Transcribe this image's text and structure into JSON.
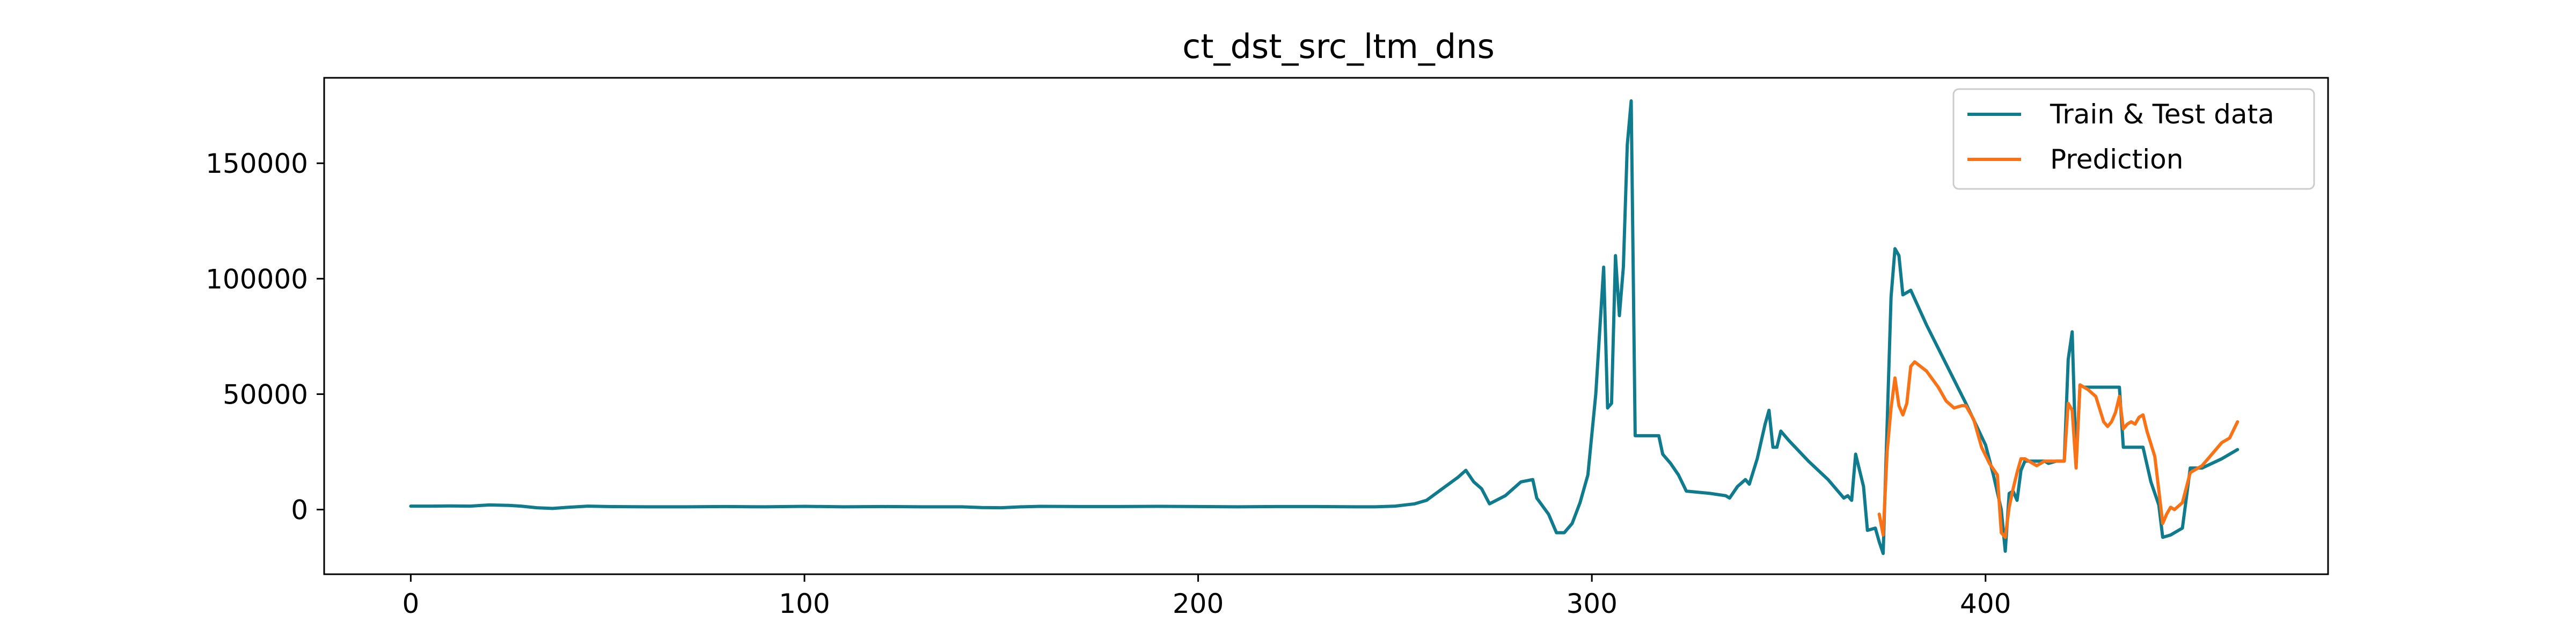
{
  "chart_data": {
    "type": "line",
    "title": "ct_dst_src_ltm_dns",
    "xlabel": "",
    "ylabel": "",
    "xlim": [
      -22,
      487
    ],
    "ylim": [
      -28000,
      187000
    ],
    "xticks": [
      0,
      100,
      200,
      300,
      400
    ],
    "yticks": [
      0,
      50000,
      100000,
      150000
    ],
    "grid": false,
    "legend_position": "top-right",
    "colors": {
      "train_test": "#0f7b8d",
      "prediction": "#f97316",
      "axes": "#000000"
    },
    "series": [
      {
        "name": "Train & Test data",
        "color": "#0f7b8d",
        "points": [
          [
            0,
            1500
          ],
          [
            5,
            1500
          ],
          [
            10,
            1600
          ],
          [
            15,
            1500
          ],
          [
            20,
            2000
          ],
          [
            25,
            1800
          ],
          [
            28,
            1500
          ],
          [
            32,
            800
          ],
          [
            36,
            500
          ],
          [
            40,
            1000
          ],
          [
            45,
            1500
          ],
          [
            50,
            1300
          ],
          [
            60,
            1200
          ],
          [
            70,
            1200
          ],
          [
            80,
            1300
          ],
          [
            90,
            1200
          ],
          [
            100,
            1400
          ],
          [
            110,
            1200
          ],
          [
            120,
            1300
          ],
          [
            130,
            1200
          ],
          [
            140,
            1200
          ],
          [
            145,
            900
          ],
          [
            150,
            800
          ],
          [
            155,
            1200
          ],
          [
            160,
            1400
          ],
          [
            170,
            1300
          ],
          [
            180,
            1300
          ],
          [
            190,
            1400
          ],
          [
            200,
            1300
          ],
          [
            210,
            1200
          ],
          [
            220,
            1300
          ],
          [
            230,
            1300
          ],
          [
            240,
            1200
          ],
          [
            245,
            1200
          ],
          [
            250,
            1500
          ],
          [
            255,
            2500
          ],
          [
            258,
            4000
          ],
          [
            262,
            9000
          ],
          [
            266,
            14000
          ],
          [
            268,
            17000
          ],
          [
            270,
            12000
          ],
          [
            272,
            9000
          ],
          [
            274,
            2500
          ],
          [
            278,
            6000
          ],
          [
            282,
            12000
          ],
          [
            285,
            13000
          ],
          [
            286,
            5000
          ],
          [
            289,
            -2000
          ],
          [
            291,
            -10000
          ],
          [
            293,
            -10000
          ],
          [
            295,
            -6000
          ],
          [
            297,
            3000
          ],
          [
            299,
            15000
          ],
          [
            301,
            50000
          ],
          [
            303,
            105000
          ],
          [
            304,
            44000
          ],
          [
            305,
            46000
          ],
          [
            306,
            110000
          ],
          [
            307,
            84000
          ],
          [
            308,
            105000
          ],
          [
            309,
            158000
          ],
          [
            310,
            177000
          ],
          [
            311,
            32000
          ],
          [
            313,
            32000
          ],
          [
            315,
            32000
          ],
          [
            317,
            32000
          ],
          [
            318,
            24000
          ],
          [
            320,
            20000
          ],
          [
            322,
            15000
          ],
          [
            324,
            8000
          ],
          [
            330,
            7000
          ],
          [
            334,
            6000
          ],
          [
            335,
            5000
          ],
          [
            337,
            10000
          ],
          [
            339,
            13000
          ],
          [
            340,
            11000
          ],
          [
            342,
            22000
          ],
          [
            344,
            37000
          ],
          [
            345,
            43000
          ],
          [
            346,
            27000
          ],
          [
            347,
            27000
          ],
          [
            348,
            34000
          ],
          [
            350,
            30000
          ],
          [
            355,
            21000
          ],
          [
            360,
            13000
          ],
          [
            364,
            5000
          ],
          [
            365,
            6000
          ],
          [
            366,
            4000
          ],
          [
            367,
            24000
          ],
          [
            369,
            10000
          ],
          [
            370,
            -9000
          ],
          [
            372,
            -8000
          ],
          [
            373,
            -14000
          ],
          [
            374,
            -19000
          ],
          [
            376,
            92000
          ],
          [
            377,
            113000
          ],
          [
            378,
            110000
          ],
          [
            379,
            93000
          ],
          [
            380,
            94000
          ],
          [
            381,
            95000
          ],
          [
            385,
            80000
          ],
          [
            390,
            63000
          ],
          [
            395,
            46000
          ],
          [
            400,
            28000
          ],
          [
            402,
            15000
          ],
          [
            404,
            0
          ],
          [
            405,
            -18000
          ],
          [
            406,
            7000
          ],
          [
            407,
            8000
          ],
          [
            408,
            4000
          ],
          [
            409,
            17000
          ],
          [
            410,
            21000
          ],
          [
            412,
            21000
          ],
          [
            415,
            21000
          ],
          [
            416,
            20000
          ],
          [
            418,
            21000
          ],
          [
            420,
            21000
          ],
          [
            421,
            65000
          ],
          [
            422,
            77000
          ],
          [
            423,
            20000
          ],
          [
            424,
            54000
          ],
          [
            425,
            53000
          ],
          [
            427,
            53000
          ],
          [
            430,
            53000
          ],
          [
            434,
            53000
          ],
          [
            435,
            27000
          ],
          [
            437,
            27000
          ],
          [
            440,
            27000
          ],
          [
            442,
            12000
          ],
          [
            444,
            2000
          ],
          [
            445,
            -12000
          ],
          [
            447,
            -11000
          ],
          [
            450,
            -8000
          ],
          [
            452,
            18000
          ],
          [
            455,
            18000
          ],
          [
            460,
            22000
          ],
          [
            464,
            26000
          ]
        ]
      },
      {
        "name": "Prediction",
        "color": "#f97316",
        "points": [
          [
            373,
            -2000
          ],
          [
            374,
            -11000
          ],
          [
            375,
            25000
          ],
          [
            376,
            44000
          ],
          [
            377,
            57000
          ],
          [
            378,
            45000
          ],
          [
            379,
            41000
          ],
          [
            380,
            46000
          ],
          [
            381,
            62000
          ],
          [
            382,
            64000
          ],
          [
            385,
            60000
          ],
          [
            388,
            53000
          ],
          [
            390,
            47000
          ],
          [
            392,
            44000
          ],
          [
            394,
            45000
          ],
          [
            395,
            45000
          ],
          [
            397,
            39000
          ],
          [
            399,
            27000
          ],
          [
            401,
            20000
          ],
          [
            403,
            15000
          ],
          [
            404,
            -10000
          ],
          [
            405,
            -12000
          ],
          [
            406,
            1000
          ],
          [
            407,
            9000
          ],
          [
            408,
            16000
          ],
          [
            409,
            22000
          ],
          [
            410,
            22000
          ],
          [
            412,
            20000
          ],
          [
            413,
            19000
          ],
          [
            415,
            21000
          ],
          [
            418,
            21000
          ],
          [
            420,
            21000
          ],
          [
            421,
            46000
          ],
          [
            422,
            43000
          ],
          [
            423,
            18000
          ],
          [
            424,
            54000
          ],
          [
            426,
            52000
          ],
          [
            428,
            49000
          ],
          [
            430,
            38000
          ],
          [
            431,
            36000
          ],
          [
            432,
            38000
          ],
          [
            433,
            42000
          ],
          [
            434,
            49000
          ],
          [
            435,
            35000
          ],
          [
            436,
            37000
          ],
          [
            437,
            38000
          ],
          [
            438,
            37000
          ],
          [
            439,
            40000
          ],
          [
            440,
            41000
          ],
          [
            441,
            34000
          ],
          [
            443,
            23000
          ],
          [
            445,
            -6000
          ],
          [
            446,
            -2000
          ],
          [
            447,
            1000
          ],
          [
            448,
            0
          ],
          [
            450,
            3000
          ],
          [
            452,
            16000
          ],
          [
            455,
            19000
          ],
          [
            458,
            25000
          ],
          [
            460,
            29000
          ],
          [
            462,
            31000
          ],
          [
            464,
            38000
          ]
        ]
      }
    ]
  }
}
